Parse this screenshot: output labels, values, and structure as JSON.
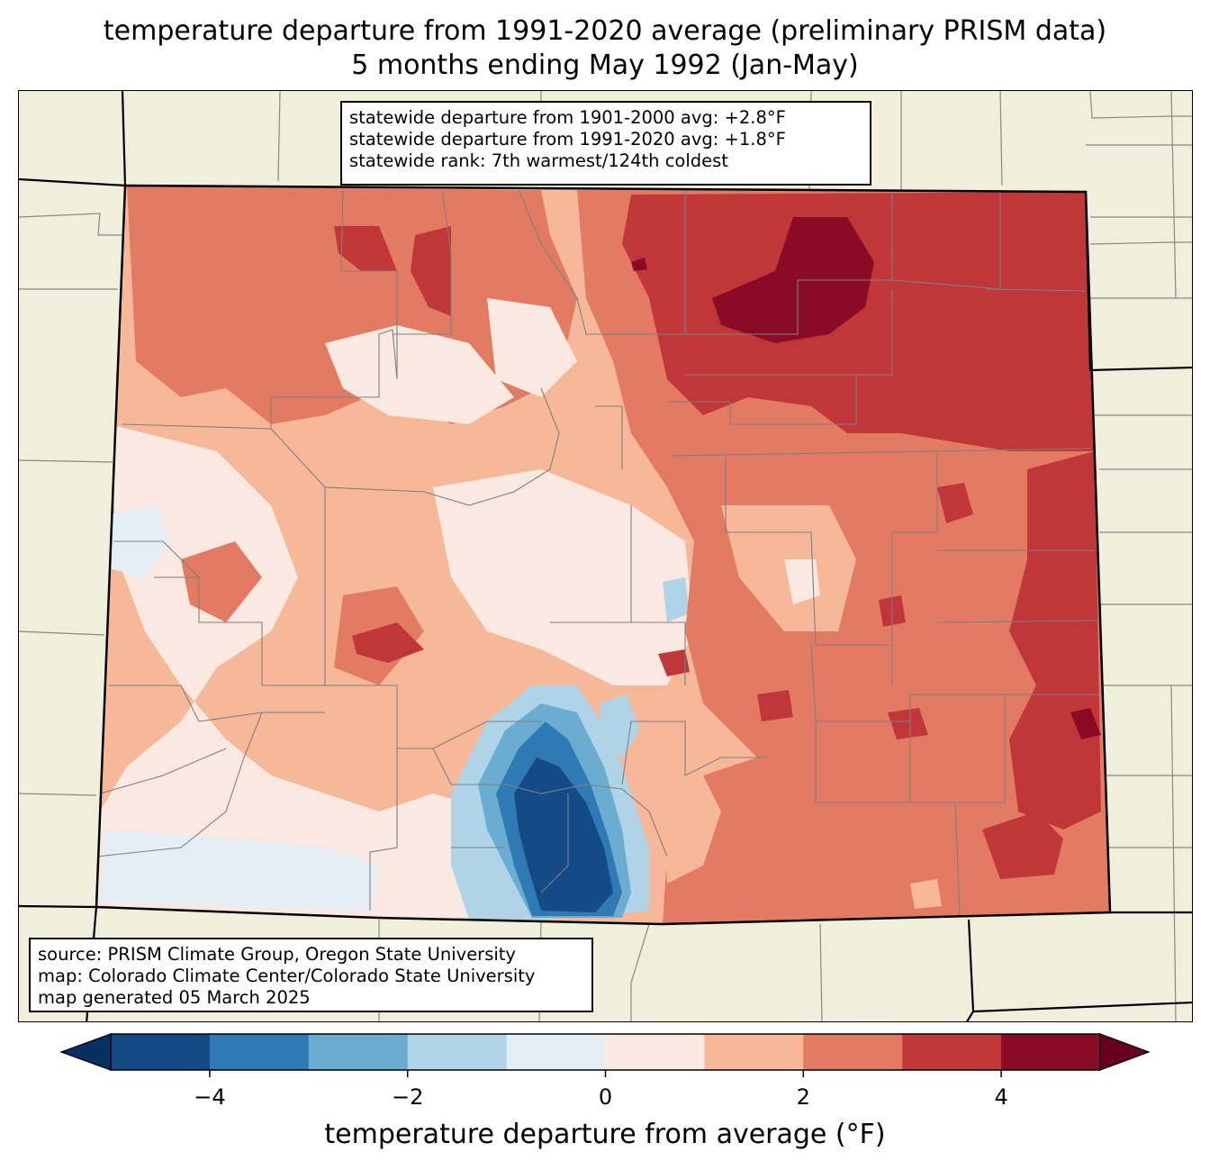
{
  "title_line1": "temperature departure from 1991-2020 average (preliminary PRISM data)",
  "title_line2": "5 months ending May 1992 (Jan-May)",
  "stats": {
    "line1": "statewide departure from 1901-2000 avg: +2.8°F",
    "line2": "statewide departure from 1991-2020 avg: +1.8°F",
    "line3": "statewide rank: 7th warmest/124th coldest"
  },
  "source": {
    "line1": "source: PRISM Climate Group, Oregon State University",
    "line2": "map: Colorado Climate Center/Colorado State University",
    "line3": "map generated 05 March 2025"
  },
  "colorbar": {
    "label": "temperature departure from average (°F)",
    "range": [
      -5,
      5
    ],
    "step": 1,
    "ticks": [
      {
        "value": -4,
        "label": "−4"
      },
      {
        "value": -2,
        "label": "−2"
      },
      {
        "value": 0,
        "label": "0"
      },
      {
        "value": 2,
        "label": "2"
      },
      {
        "value": 4,
        "label": "4"
      }
    ],
    "colors": [
      "#134b87",
      "#2f79b5",
      "#6aadd0",
      "#b0d4e7",
      "#e5eef4",
      "#f9e9e0",
      "#f7b799",
      "#e27b62",
      "#c13639",
      "#8a0b25"
    ],
    "under_color": "#053061",
    "over_color": "#67001f"
  },
  "map_colors": {
    "land": "#f0efdc",
    "state_border": "#000000",
    "county_lines": "#808080"
  }
}
